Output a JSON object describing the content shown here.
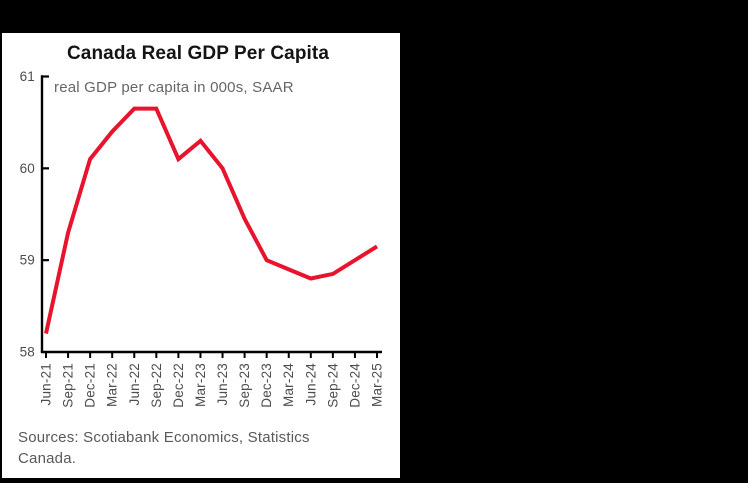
{
  "style": {
    "page_bg": "#000000",
    "card_bg": "#ffffff",
    "line_red": "#e8132c",
    "axis_color": "#000000",
    "tick_text_color": "#4d4d4d",
    "muted_text_color": "#595959"
  },
  "chart": {
    "title": "Canada Real GDP Per Capita",
    "subtitle": "real GDP per capita in 000s, SAAR",
    "source_note": "Sources: Scotiabank Economics, Statistics Canada."
  },
  "chart_data": {
    "type": "line",
    "title": "Canada Real GDP Per Capita",
    "subtitle": "real GDP per capita in 000s, SAAR",
    "xlabel": "",
    "ylabel": "",
    "categories": [
      "Jun-21",
      "Sep-21",
      "Dec-21",
      "Mar-22",
      "Jun-22",
      "Sep-22",
      "Dec-22",
      "Mar-23",
      "Jun-23",
      "Sep-23",
      "Dec-23",
      "Mar-24",
      "Jun-24",
      "Sep-24",
      "Dec-24",
      "Mar-25"
    ],
    "series": [
      {
        "name": "Canada real GDP per capita (000s, SAAR)",
        "color": "#e8132c",
        "values": [
          58.2,
          59.3,
          60.1,
          60.4,
          60.65,
          60.65,
          60.1,
          60.3,
          60.0,
          59.45,
          59.0,
          58.9,
          58.8,
          58.85,
          59.0,
          59.15
        ]
      }
    ],
    "ylim": [
      58,
      61
    ],
    "yticks": [
      58,
      59,
      60,
      61
    ],
    "grid": false,
    "legend": "none",
    "x_tick_label_rotation": 90,
    "source": "Sources: Scotiabank Economics, Statistics Canada."
  }
}
